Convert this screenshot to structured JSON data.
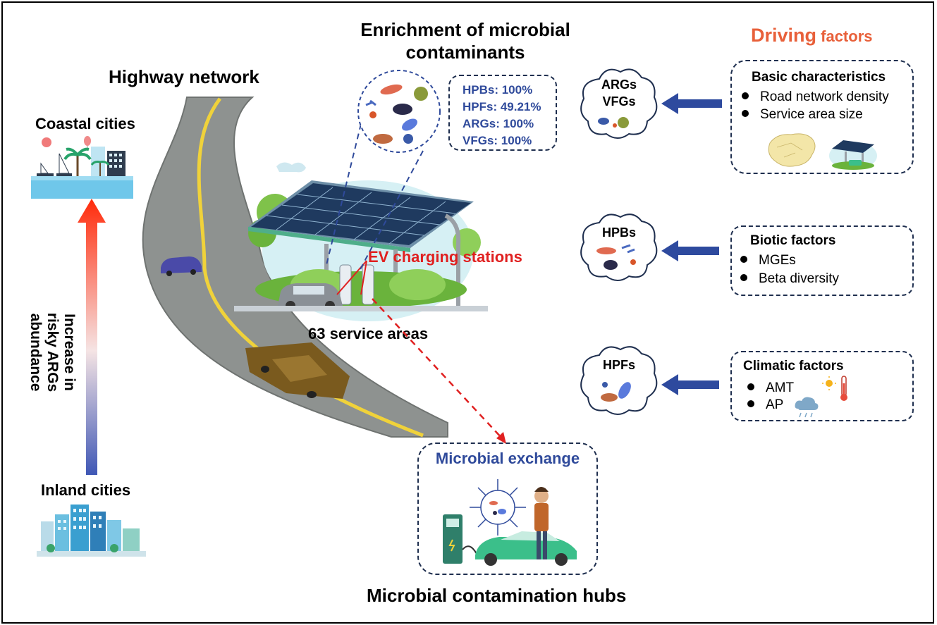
{
  "left": {
    "coastal_label": "Coastal cities",
    "inland_label": "Inland cities",
    "gradient_label_lines": [
      "Increase in",
      "risky ARGs",
      "abundance"
    ]
  },
  "highway": {
    "title": "Highway network",
    "ev_label": "EV charging stations",
    "service_label": "63 service areas"
  },
  "enrichment": {
    "title_lines": [
      "Enrichment of microbial",
      "contaminants"
    ],
    "stats": [
      "HPBs: 100%",
      "HPFs: 49.21%",
      "ARGs: 100%",
      "VFGs: 100%"
    ]
  },
  "exchange": {
    "title": "Microbial exchange",
    "caption": "Microbial contamination hubs"
  },
  "driving": {
    "title_bold": "Driving",
    "title_rest": " factors",
    "clouds": [
      {
        "lines": [
          "ARGs",
          "VFGs"
        ]
      },
      {
        "lines": [
          "HPBs"
        ]
      },
      {
        "lines": [
          "HPFs"
        ]
      }
    ],
    "groups": [
      {
        "head": "Basic characteristics",
        "items": [
          "Road network density",
          "Service area size"
        ]
      },
      {
        "head": "Biotic factors",
        "items": [
          "MGEs",
          "Beta diversity"
        ]
      },
      {
        "head": "Climatic factors",
        "items": [
          "AMT",
          "AP"
        ]
      }
    ]
  },
  "colors": {
    "accent_orange": "#e8603a",
    "ev_red": "#e02020",
    "stat_blue": "#2f4a9b",
    "arrow_blue": "#2e4a9e",
    "box_border": "#1f2f4f"
  }
}
